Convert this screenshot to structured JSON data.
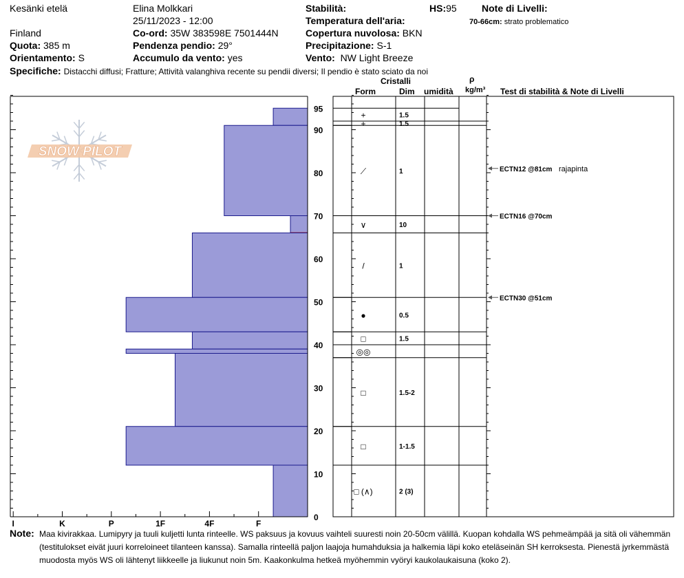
{
  "header": {
    "location": "Kesänki etelä",
    "country": "Finland",
    "observer": "Elina Molkkari",
    "datetime": "25/11/2023 - 12:00",
    "elevation_label": "Quota:",
    "elevation_value": "385 m",
    "aspect_label": "Orientamento:",
    "aspect_value": "S",
    "coord_label": "Co-ord:",
    "coord_value": "35W 383598E 7501444N",
    "slope_label": "Pendenza pendio:",
    "slope_value": "29°",
    "wind_loading_label": "Accumulo da vento:",
    "wind_loading_value": "yes",
    "stability_label": "Stabilità:",
    "air_temp_label": "Temperatura dell'aria:",
    "sky_label": "Copertura nuvolosa:",
    "sky_value": "BKN",
    "precip_label": "Precipitazione:",
    "precip_value": "S-1",
    "wind_label": "Vento:",
    "wind_value": "NW Light Breeze",
    "hs_label": "HS:",
    "hs_value": "95",
    "layer_notes_label": "Note di Livelli:",
    "layer_note_range": "70-66cm:",
    "layer_note_text": "strato problematico",
    "specifics_label": "Specifiche:",
    "specifics_value": "Distacchi diffusi;  Fratture;  Attività valanghiva recente su pendii diversi;  Il pendio è stato sciato da noi"
  },
  "logo_text": "SNOW PILOT",
  "columns": {
    "crystals": "Cristalli",
    "form": "Form",
    "size": "Dim",
    "moisture": "umidità",
    "rho": "ρ",
    "density": "kg/m³",
    "tests": "Test di stabilità & Note di Livelli"
  },
  "notes": {
    "label": "Note:",
    "lines": [
      "Maa kivirakkaa. Lumipyry ja tuuli kuljetti lunta rinteelle. WS paksuus ja kovuus vaihteli suuresti noin 20-50cm välillä. Kuopan kohdalla WS pehmeämpää ja sitä oli vähemmän",
      "(testitulokset eivät juuri korreloineet tilanteen kanssa). Samalla rinteellä paljon laajoja humahduksia ja halkemia läpi koko eteläseinän SH kerroksesta. Pienestä jyrkemmästä",
      "muodosta myös WS oli lähtenyt liikkeelle ja liukunut noin 5m. Kaakonkulma hetkeä myöhemmin vyöryi kaukolaukaisuna (koko 2)."
    ]
  },
  "colors": {
    "layer_fill": "#9b9bd8",
    "layer_stroke": "#1a1a8c",
    "weak_layer": "#b22222"
  },
  "chart_data": {
    "type": "bar",
    "title": "",
    "orientation": "horizontal",
    "xlabel": "",
    "ylabel": "",
    "hardness_ticks": [
      "I",
      "K",
      "P",
      "1F",
      "4F",
      "F"
    ],
    "height_ticks": [
      0,
      10,
      20,
      30,
      40,
      50,
      60,
      70,
      80,
      90,
      95
    ],
    "ylim": [
      0,
      98
    ],
    "hardness_scale_note": "hardness in units: F=1, 4F=2, 1F=3, P=4, K=5, I=6",
    "layers": [
      {
        "top": 95,
        "bottom": 91,
        "hardness": 0.7
      },
      {
        "top": 91,
        "bottom": 70,
        "hardness": 1.7
      },
      {
        "top": 70,
        "bottom": 66,
        "hardness": 0.35,
        "weak": true
      },
      {
        "top": 66,
        "bottom": 51,
        "hardness": 2.35
      },
      {
        "top": 51,
        "bottom": 43,
        "hardness": 3.7
      },
      {
        "top": 43,
        "bottom": 39,
        "hardness": 2.35
      },
      {
        "top": 39,
        "bottom": 38,
        "hardness": 3.7
      },
      {
        "top": 38,
        "bottom": 21,
        "hardness": 2.7
      },
      {
        "top": 21,
        "bottom": 12,
        "hardness": 3.7
      },
      {
        "top": 12,
        "bottom": 0,
        "hardness": 0.7
      }
    ],
    "crystal_rows": [
      {
        "top": 95,
        "bottom": 92,
        "form": "+",
        "size": "1.5"
      },
      {
        "top": 92,
        "bottom": 91,
        "form": "+",
        "size": "1.5"
      },
      {
        "top": 91,
        "bottom": 70,
        "form": "⟋",
        "size": "1"
      },
      {
        "top": 70,
        "bottom": 66,
        "form": "∨",
        "size": "10"
      },
      {
        "top": 66,
        "bottom": 51,
        "form": "/",
        "size": "1"
      },
      {
        "top": 51,
        "bottom": 43,
        "form": "●",
        "size": "0.5"
      },
      {
        "top": 43,
        "bottom": 40,
        "form": "□",
        "size": "1.5"
      },
      {
        "top": 40,
        "bottom": 37,
        "form": "◎◎",
        "size": ""
      },
      {
        "top": 37,
        "bottom": 21,
        "form": "□",
        "size": "1.5-2"
      },
      {
        "top": 21,
        "bottom": 12,
        "form": "□",
        "size": "1-1.5"
      },
      {
        "top": 12,
        "bottom": 0,
        "form": "□ (∧)",
        "size": "2 (3)"
      }
    ],
    "tests": [
      {
        "depth": 81,
        "label": "ECTN12 @81cm",
        "note": "rajapinta"
      },
      {
        "depth": 70,
        "label": "ECTN16 @70cm",
        "note": ""
      },
      {
        "depth": 51,
        "label": "ECTN30 @51cm",
        "note": ""
      }
    ]
  }
}
